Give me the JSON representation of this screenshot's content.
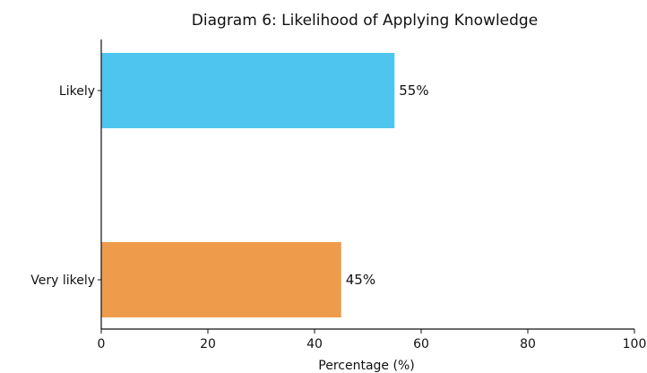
{
  "chart_data": {
    "type": "bar",
    "orientation": "horizontal",
    "title": "Diagram 6: Likelihood of Applying Knowledge",
    "xlabel": "Percentage (%)",
    "ylabel": "",
    "categories": [
      "Likely",
      "Very likely"
    ],
    "values": [
      55,
      45
    ],
    "value_labels": [
      "55%",
      "45%"
    ],
    "colors": [
      "#4DC5EE",
      "#EE9C4B"
    ],
    "xlim": [
      0,
      100
    ],
    "xticks": [
      0,
      20,
      40,
      60,
      80,
      100
    ],
    "grid": false,
    "legend": "none"
  }
}
